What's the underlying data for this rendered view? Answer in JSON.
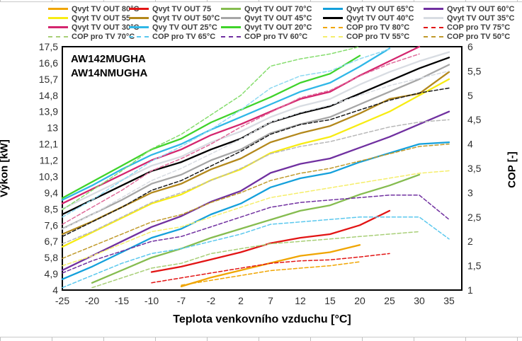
{
  "chart_data": {
    "type": "line",
    "annotation": {
      "line1": "AW142MUGHA",
      "line2": "AW14NMUGHA"
    },
    "xlabel": "Teplota venkovního vzduchu [°C]",
    "ylabel_left": "Výkon [kW]",
    "ylabel_right": "COP [-]",
    "x_categories": [
      -25,
      -20,
      -15,
      -10,
      -7,
      -2,
      2,
      7,
      12,
      15,
      20,
      25,
      30,
      35
    ],
    "x_tick_labels": [
      "-25",
      "-20",
      "-15",
      "-10",
      "-7",
      "-2",
      "2",
      "7",
      "12",
      "15",
      "20",
      "25",
      "30",
      "35"
    ],
    "y_left_axis": {
      "min": 4,
      "max": 17.5,
      "tick_labels_top_to_bottom": [
        "17,5",
        "16,6",
        "15,7",
        "14,8",
        "13,9",
        "13",
        "12,1",
        "11,2",
        "10,3",
        "9,4",
        "8,5",
        "7,6",
        "6,7",
        "5,8",
        "4,9",
        "4"
      ]
    },
    "y_right_axis": {
      "min": 1,
      "max": 6,
      "tick_labels_top_to_bottom": [
        "6",
        "5,5",
        "5",
        "4,5",
        "4",
        "3,5",
        "3",
        "2,5",
        "2",
        "1,5",
        "1"
      ]
    },
    "legend_position": "top",
    "grid": false,
    "series": [
      {
        "key": "q20",
        "name": "Qvyt TV OUT 20°C",
        "axis": "kW",
        "style": "solid",
        "color": "#3fd32a",
        "in_legend": true,
        "values": [
          9.1,
          10.0,
          10.9,
          11.8,
          12.4,
          13.3,
          14.0,
          14.7,
          15.5,
          16.0,
          17.0,
          null,
          null,
          null
        ]
      },
      {
        "key": "q25",
        "name": "Qvy TV OUT 25°C",
        "axis": "kW",
        "style": "solid",
        "color": "#2fb7e7",
        "in_legend": true,
        "values": [
          9.0,
          9.8,
          10.7,
          11.5,
          12.1,
          12.9,
          13.6,
          14.3,
          15.0,
          15.5,
          16.4,
          17.4,
          null,
          null
        ]
      },
      {
        "key": "q30",
        "name": "Qvyt TV OUT 30°C",
        "axis": "kW",
        "style": "solid",
        "color": "#d4256e",
        "in_legend": true,
        "values": [
          8.8,
          9.6,
          10.4,
          11.2,
          11.8,
          12.6,
          13.2,
          13.9,
          14.6,
          15.0,
          15.9,
          16.7,
          17.5,
          null
        ]
      },
      {
        "key": "q35",
        "name": "Qvyt TV OUT 35°C",
        "axis": "kW",
        "style": "solid",
        "color": "#d8dce2",
        "in_legend": true,
        "values": [
          8.5,
          9.3,
          10.1,
          10.9,
          11.4,
          12.2,
          12.8,
          13.6,
          14.2,
          14.6,
          15.4,
          16.1,
          16.7,
          17.2
        ]
      },
      {
        "key": "q40",
        "name": "Qvyt TV OUT 40°C",
        "axis": "kW",
        "style": "solid",
        "color": "#000000",
        "in_legend": true,
        "values": [
          8.2,
          9.0,
          9.8,
          10.6,
          11.1,
          11.8,
          12.4,
          13.3,
          13.8,
          14.2,
          14.9,
          15.6,
          16.3,
          16.9
        ]
      },
      {
        "key": "q45",
        "name": "Qvyt TV OUT 45°C",
        "axis": "kW",
        "style": "solid",
        "color": "#a6a6a6",
        "in_legend": true,
        "values": [
          7.4,
          8.2,
          9.0,
          9.9,
          10.4,
          11.2,
          11.8,
          12.7,
          13.2,
          13.6,
          14.3,
          15.0,
          15.7,
          16.5
        ]
      },
      {
        "key": "q50",
        "name": "Qvyt TV OUT 50°C",
        "axis": "kW",
        "style": "solid",
        "color": "#b3881b",
        "in_legend": true,
        "values": [
          7.1,
          7.8,
          8.6,
          9.4,
          9.9,
          10.7,
          11.3,
          12.2,
          12.7,
          13.1,
          13.8,
          14.6,
          14.9,
          16.1
        ]
      },
      {
        "key": "q55",
        "name": "Qvyt TV OUT 55",
        "axis": "kW",
        "style": "solid",
        "color": "#f7ec13",
        "in_legend": true,
        "values": [
          6.4,
          7.2,
          8.0,
          8.8,
          9.3,
          10.1,
          10.7,
          11.6,
          12.1,
          12.5,
          13.2,
          13.9,
          14.8,
          15.7
        ]
      },
      {
        "key": "q60",
        "name": "Qvyt TV OUT 60°C",
        "axis": "kW",
        "style": "solid",
        "color": "#7030a0",
        "in_legend": true,
        "values": [
          5.1,
          5.9,
          6.7,
          7.5,
          8.1,
          8.9,
          9.5,
          10.5,
          11.0,
          11.3,
          11.9,
          12.5,
          13.2,
          13.9
        ]
      },
      {
        "key": "q65",
        "name": "Qvyt TV OUT 65°C",
        "axis": "kW",
        "style": "solid",
        "color": "#14a0db",
        "in_legend": true,
        "values": [
          4.6,
          5.3,
          6.1,
          6.9,
          7.4,
          8.2,
          8.8,
          9.7,
          10.2,
          10.5,
          11.1,
          11.6,
          12.1,
          12.2
        ]
      },
      {
        "key": "q70",
        "name": "Qvyt TV OUT 70°C",
        "axis": "kW",
        "style": "solid",
        "color": "#85bc4f",
        "in_legend": true,
        "values": [
          null,
          4.4,
          5.1,
          5.8,
          6.3,
          6.9,
          7.4,
          7.9,
          8.4,
          8.7,
          9.3,
          9.8,
          10.4,
          null
        ]
      },
      {
        "key": "q75",
        "name": "Qvyt TV OUT 75",
        "axis": "kW",
        "style": "solid",
        "color": "#e21414",
        "in_legend": true,
        "values": [
          null,
          null,
          null,
          5.0,
          5.3,
          5.7,
          6.1,
          6.6,
          6.9,
          7.1,
          7.6,
          8.4,
          null,
          null
        ]
      },
      {
        "key": "q80",
        "name": "Qvyt TV OUT 80°C",
        "axis": "kW",
        "style": "solid",
        "color": "#f0a500",
        "in_legend": true,
        "values": [
          null,
          null,
          null,
          null,
          4.2,
          4.7,
          5.1,
          5.5,
          5.9,
          6.1,
          6.5,
          null,
          null,
          null
        ]
      },
      {
        "key": "cop20",
        "name": "COP pro TV 20°C",
        "axis": "COP",
        "style": "dashed",
        "color": "#86dd6e",
        "in_legend": false,
        "values": [
          2.65,
          3.05,
          3.45,
          3.9,
          4.2,
          4.6,
          5.0,
          5.6,
          5.75,
          5.85,
          6.0,
          null,
          null,
          null
        ]
      },
      {
        "key": "cop25",
        "name": "COP pro TV 25°C",
        "axis": "COP",
        "style": "dashed",
        "color": "#8ed9f2",
        "in_legend": false,
        "values": [
          2.5,
          2.85,
          3.25,
          3.65,
          3.95,
          4.3,
          4.7,
          5.15,
          5.4,
          5.5,
          5.75,
          5.95,
          null,
          null
        ]
      },
      {
        "key": "cop30",
        "name": "COP pro TV 30°C",
        "axis": "COP",
        "style": "dashed",
        "color": "#e06c9b",
        "in_legend": false,
        "values": [
          2.35,
          2.7,
          3.05,
          3.45,
          3.7,
          4.0,
          4.35,
          4.65,
          4.95,
          5.1,
          5.4,
          5.65,
          5.85,
          null
        ]
      },
      {
        "key": "cop35",
        "name": "COP pro TV 35°C",
        "axis": "COP",
        "style": "dashed",
        "color": "#d8dce2",
        "in_legend": false,
        "values": [
          2.25,
          2.55,
          2.9,
          3.25,
          3.5,
          3.8,
          4.1,
          4.45,
          4.65,
          4.8,
          5.0,
          5.2,
          5.35,
          5.5
        ]
      },
      {
        "key": "cop40",
        "name": "COP pro TV 40°C",
        "axis": "COP",
        "style": "dashed",
        "color": "#1a1a1a",
        "in_legend": false,
        "values": [
          2.1,
          2.4,
          2.7,
          3.05,
          3.25,
          3.55,
          3.85,
          4.2,
          4.4,
          4.5,
          4.7,
          4.9,
          5.05,
          5.15
        ]
      },
      {
        "key": "cop45",
        "name": "COP pro TV 45°C",
        "axis": "COP",
        "style": "dashed",
        "color": "#b8b8b8",
        "in_legend": false,
        "values": [
          1.95,
          2.2,
          2.5,
          2.8,
          3.0,
          3.25,
          3.5,
          3.8,
          3.95,
          4.05,
          4.2,
          4.35,
          4.45,
          4.5
        ]
      },
      {
        "key": "cop50",
        "name": "COP pro TV 50°C",
        "axis": "COP",
        "style": "dashed",
        "color": "#c09a2b",
        "in_legend": true,
        "values": [
          1.65,
          1.9,
          2.15,
          2.4,
          2.55,
          2.8,
          3.0,
          3.25,
          3.4,
          3.5,
          3.65,
          3.8,
          3.95,
          4.0
        ]
      },
      {
        "key": "cop55",
        "name": "COP pro TV 55°C",
        "axis": "COP",
        "style": "dashed",
        "color": "#f5ee6b",
        "in_legend": true,
        "values": [
          1.5,
          1.7,
          1.95,
          2.2,
          2.3,
          2.5,
          2.7,
          2.9,
          3.0,
          3.1,
          3.2,
          3.3,
          3.4,
          3.45
        ]
      },
      {
        "key": "cop60",
        "name": "COP pro TV 60°C",
        "axis": "COP",
        "style": "dashed",
        "color": "#7030a0",
        "in_legend": true,
        "values": [
          1.35,
          1.6,
          1.8,
          2.0,
          2.1,
          2.3,
          2.5,
          2.7,
          2.8,
          2.85,
          2.9,
          2.95,
          2.95,
          2.45
        ]
      },
      {
        "key": "cop65",
        "name": "COP pro TV 65°C",
        "axis": "COP",
        "style": "dashed",
        "color": "#5bc8ee",
        "in_legend": true,
        "values": [
          1.05,
          1.3,
          1.55,
          1.75,
          1.85,
          2.0,
          2.15,
          2.35,
          2.4,
          2.45,
          2.5,
          2.5,
          2.5,
          2.05
        ]
      },
      {
        "key": "cop70",
        "name": "COP pro TV 70°C",
        "axis": "COP",
        "style": "dashed",
        "color": "#a8cf77",
        "in_legend": true,
        "values": [
          null,
          1.05,
          1.25,
          1.45,
          1.55,
          1.75,
          1.85,
          1.95,
          2.0,
          2.05,
          2.1,
          2.15,
          2.2,
          null
        ]
      },
      {
        "key": "cop75",
        "name": "COP pro TV 75°C",
        "axis": "COP",
        "style": "dashed",
        "color": "#e21414",
        "in_legend": true,
        "values": [
          null,
          null,
          null,
          1.15,
          1.25,
          1.35,
          1.45,
          1.55,
          1.6,
          1.62,
          1.68,
          1.75,
          null,
          null
        ]
      },
      {
        "key": "cop80",
        "name": "COP pro TV 80°C",
        "axis": "COP",
        "style": "dashed",
        "color": "#f0a500",
        "in_legend": true,
        "values": [
          null,
          null,
          null,
          null,
          1.1,
          1.2,
          1.3,
          1.4,
          1.45,
          1.5,
          1.58,
          null,
          null,
          null
        ]
      }
    ],
    "legend_order": [
      "q80",
      "q75",
      "q70",
      "q65",
      "q60",
      "q55",
      "q50",
      "q45",
      "q40",
      "q35",
      "q30",
      "q25",
      "q20",
      "cop80",
      "cop75",
      "cop70",
      "cop65",
      "cop60",
      "cop55",
      "cop50"
    ]
  }
}
